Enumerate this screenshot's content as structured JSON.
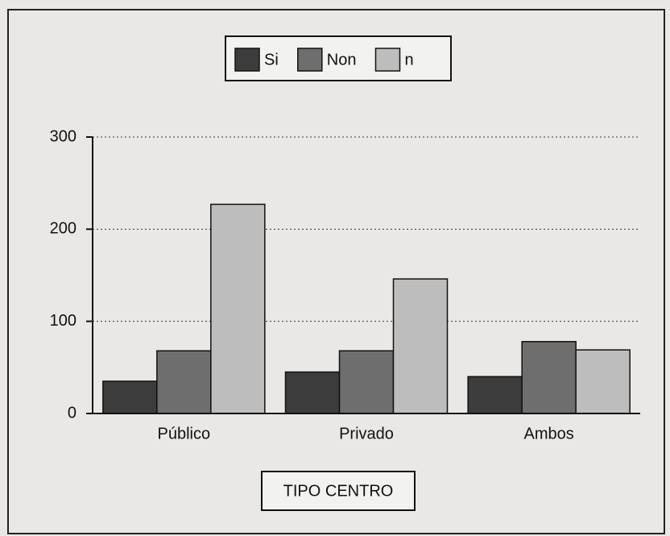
{
  "chart_data": {
    "type": "bar",
    "categories": [
      "Público",
      "Privado",
      "Ambos"
    ],
    "series": [
      {
        "name": "Si",
        "color": "#3c3c3c",
        "values": [
          35,
          45,
          40
        ]
      },
      {
        "name": "Non",
        "color": "#6e6e6e",
        "values": [
          68,
          68,
          78
        ]
      },
      {
        "name": "n",
        "color": "#bdbdbd",
        "values": [
          227,
          146,
          69
        ]
      }
    ],
    "ylim": [
      0,
      300
    ],
    "yticks": [
      0,
      100,
      200,
      300
    ],
    "grid": true,
    "legend": "top",
    "xlabel": "TIPO CENTRO"
  }
}
